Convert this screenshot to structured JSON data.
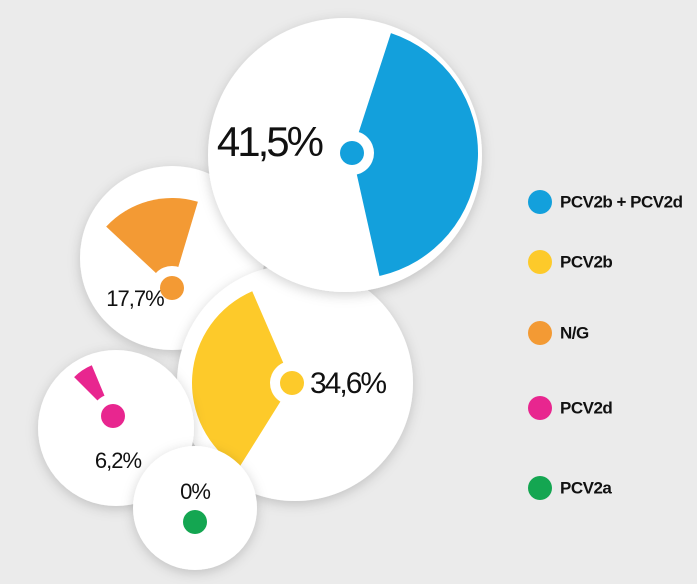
{
  "chart_data": {
    "type": "pie",
    "categories": [
      "PCV2b + PCV2d",
      "PCV2b",
      "N/G",
      "PCV2d",
      "PCV2a"
    ],
    "values": [
      41.5,
      34.6,
      17.7,
      6.2,
      0
    ],
    "value_labels": [
      "41,5%",
      "34,6%",
      "17,7%",
      "6,2%",
      "0%"
    ],
    "colors": [
      "#13a0dc",
      "#fdca2a",
      "#f39a34",
      "#e8268f",
      "#14a651"
    ]
  }
}
